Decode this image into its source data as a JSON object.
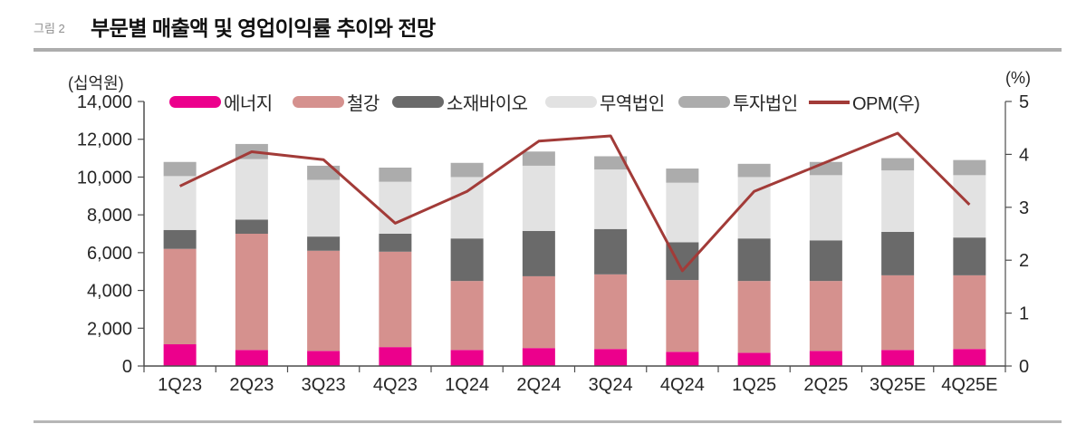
{
  "header": {
    "figure_label": "그림 2",
    "title": "부문별 매출액 및 영업이익률 추이와 전망"
  },
  "chart_data": {
    "type": "bar",
    "stacked": true,
    "grid": false,
    "legend_position": "top",
    "title": "부문별 매출액 및 영업이익률 추이와 전망",
    "categories": [
      "1Q23",
      "2Q23",
      "3Q23",
      "4Q23",
      "1Q24",
      "2Q24",
      "3Q24",
      "4Q24",
      "1Q25",
      "2Q25",
      "3Q25E",
      "4Q25E"
    ],
    "series": [
      {
        "name": "에너지",
        "color": "#EC008C",
        "values": [
          1150,
          850,
          800,
          1000,
          850,
          950,
          900,
          750,
          700,
          800,
          850,
          900
        ]
      },
      {
        "name": "철강",
        "color": "#D5918E",
        "values": [
          5050,
          6150,
          5300,
          5050,
          3650,
          3800,
          3950,
          3800,
          3800,
          3700,
          3950,
          3900
        ]
      },
      {
        "name": "소재바이오",
        "color": "#6A6A6A",
        "values": [
          1000,
          750,
          750,
          950,
          2250,
          2400,
          2400,
          2000,
          2250,
          2150,
          2300,
          2000
        ]
      },
      {
        "name": "무역법인",
        "color": "#E2E2E2",
        "values": [
          2850,
          3200,
          3000,
          2750,
          3250,
          3450,
          3150,
          3150,
          3250,
          3450,
          3250,
          3300
        ]
      },
      {
        "name": "투자법인",
        "color": "#ACACAC",
        "values": [
          750,
          800,
          750,
          750,
          750,
          750,
          700,
          750,
          700,
          700,
          650,
          800
        ]
      }
    ],
    "line_series": {
      "name": "OPM(우)",
      "color": "#A23B38",
      "axis": "right",
      "values": [
        3.4,
        4.05,
        3.9,
        2.7,
        3.3,
        4.25,
        4.35,
        1.8,
        3.3,
        3.85,
        4.4,
        3.05
      ]
    },
    "left_axis": {
      "label": "(십억원)",
      "min": 0,
      "max": 14000,
      "tick_step": 2000,
      "tick_labels": [
        "0",
        "2,000",
        "4,000",
        "6,000",
        "8,000",
        "10,000",
        "12,000",
        "14,000"
      ]
    },
    "right_axis": {
      "label": "(%)",
      "min": 0,
      "max": 5,
      "tick_step": 1,
      "tick_labels": [
        "0",
        "1",
        "2",
        "3",
        "4",
        "5"
      ]
    }
  }
}
